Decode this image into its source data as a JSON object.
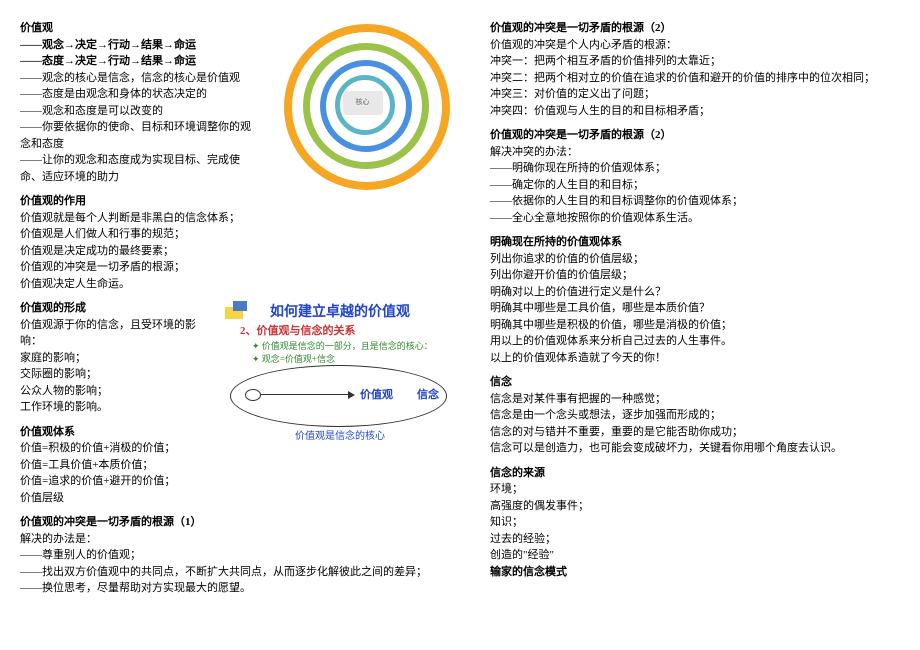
{
  "left": {
    "h1": "价值观",
    "chain1": "——观念→决定→行动→结果→命运",
    "chain2": "——态度→决定→行动→结果→命运",
    "intro": [
      "——观念的核心是信念，信念的核心是价值观",
      "——态度是由观念和身体的状态决定的",
      "——观念和态度是可以改变的",
      "——你要依据你的使命、目标和环境调整你的观念和态度",
      "——让你的观念和态度成为实现目标、完成使命、适应环境的助力"
    ],
    "h2": "价值观的作用",
    "role": [
      "价值观就是每个人判断是非黑白的信念体系；",
      "价值观是人们做人和行事的规范；",
      "价值观是决定成功的最终要素；",
      "价值观的冲突是一切矛盾的根源；",
      "价值观决定人生命运。"
    ],
    "h3": "价值观的形成",
    "form": [
      "价值观源于你的信念，且受环境的影响：",
      "家庭的影响；",
      "交际圈的影响；",
      "公众人物的影响；",
      "工作环境的影响。"
    ],
    "h4": "价值观体系",
    "system": [
      "价值=积极的价值+消极的价值；",
      "价值=工具价值+本质价值；",
      "价值=追求的价值+避开的价值；",
      "价值层级"
    ],
    "h5": "价值观的冲突是一切矛盾的根源（1）",
    "conflict1": [
      "解决的办法是：",
      "——尊重别人的价值观；",
      "——找出双方价值观中的共同点，不断扩大共同点，从而逐步化解彼此之间的差异；",
      "——换位思考，尽量帮助对方实现最大的愿望。"
    ],
    "img2": {
      "title": "如何建立卓越的价值观",
      "sub": "2、价值观与信念的关系",
      "b1": "✦  价值观是信念的一部分，且是信念的核心：",
      "b2": "✦  观念=价值观+信念",
      "label_v": "价值观",
      "label_x": "信念",
      "footer": "价值观是信念的核心"
    }
  },
  "right": {
    "h1": "价值观的冲突是一切矛盾的根源（2）",
    "c2": [
      "价值观的冲突是个人内心矛盾的根源：",
      "冲突一：把两个相互矛盾的价值排列的太靠近；",
      "冲突二：把两个相对立的价值在追求的价值和避开的价值的排序中的位次相同；",
      "冲突三：对价值的定义出了问题；",
      "冲突四：价值观与人生的目的和目标相矛盾；"
    ],
    "h2": "价值观的冲突是一切矛盾的根源（2）",
    "solve": [
      "解决冲突的办法：",
      "——明确你现在所持的价值观体系；",
      "——确定你的人生目的和目标；",
      "——依据你的人生目的和目标调整你的价值观体系；",
      "——全心全意地按照你的价值观体系生活。"
    ],
    "h3": "明确现在所持的价值观体系",
    "clarify": [
      "列出你追求的价值的价值层级；",
      "列出你避开价值的价值层级；",
      "明确对以上的价值进行定义是什么？",
      "明确其中哪些是工具价值，哪些是本质价值？",
      "明确其中哪些是积极的价值，哪些是消极的价值；",
      "用以上的价值观体系来分析自己过去的人生事件。",
      "以上的价值观体系造就了今天的你！"
    ],
    "h4": "信念",
    "belief": [
      "信念是对某件事有把握的一种感觉；",
      "信念是由一个念头或想法，逐步加强而形成的；",
      "信念的对与错并不重要，重要的是它能否助你成功；",
      "信念可以是创造力，也可能会变成破坏力，关键看你用哪个角度去认识。"
    ],
    "h5": "信念的来源",
    "source": [
      "环境；",
      "高强度的偶发事件；",
      "知识；",
      "过去的经验；",
      "创造的\"经验\""
    ],
    "h6": "输家的信念模式"
  }
}
